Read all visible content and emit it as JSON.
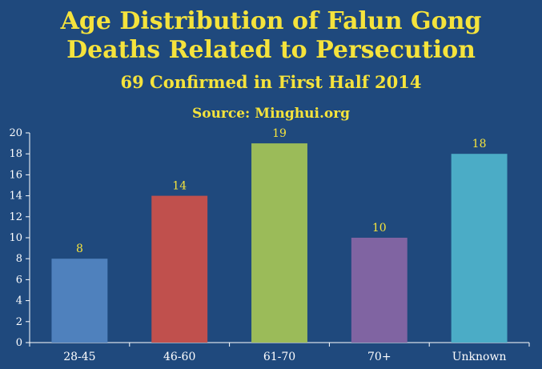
{
  "chart_data": {
    "type": "bar",
    "title": "Age Distribution of Falun Gong",
    "title_line2": "Deaths Related to Persecution",
    "subtitle": "69 Confirmed in First Half 2014",
    "source": "Source: Minghui.org",
    "categories": [
      "28-45",
      "46-60",
      "61-70",
      "70+",
      "Unknown"
    ],
    "values": [
      8,
      14,
      19,
      10,
      18
    ],
    "colors": [
      "#4f81bd",
      "#c0504d",
      "#9bbb59",
      "#8064a2",
      "#4bacc6"
    ],
    "ylim": [
      0,
      20
    ],
    "yticks": [
      0,
      2,
      4,
      6,
      8,
      10,
      12,
      14,
      16,
      18,
      20
    ],
    "grid": false,
    "legend": "none",
    "xlabel": "",
    "ylabel": ""
  },
  "colors": {
    "background": "#1f497d",
    "title": "#f5e33c",
    "axis": "#ffffff"
  }
}
